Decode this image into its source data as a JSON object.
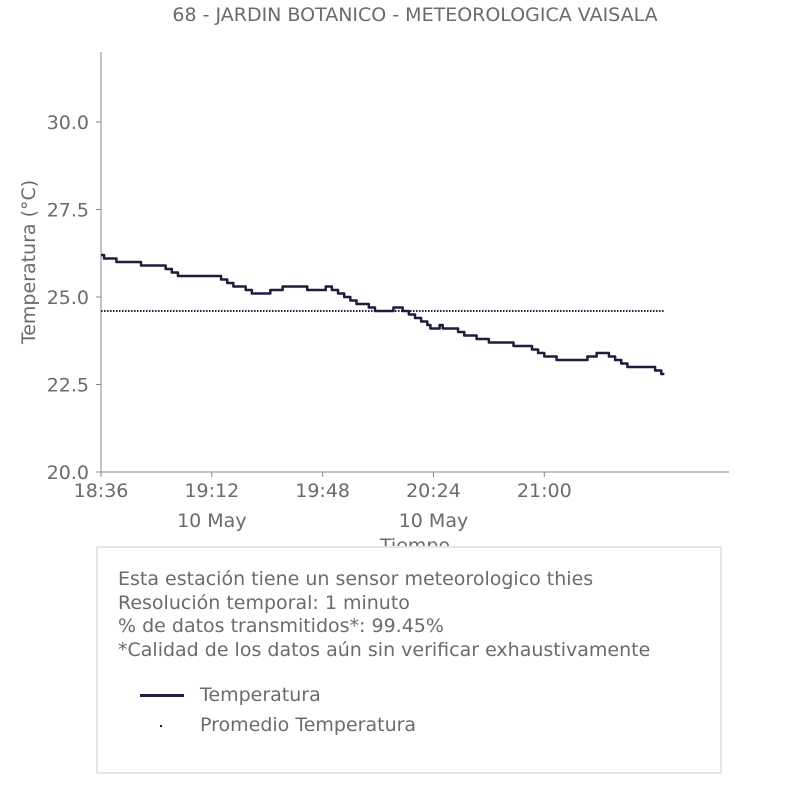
{
  "chart_data": {
    "type": "line",
    "title": "68 - JARDIN BOTANICO - METEOROLOGICA VAISALA",
    "xlabel": "Tiempo",
    "ylabel": "Temperatura (°C)",
    "ylim": [
      20.0,
      32.0
    ],
    "xlim": [
      "18:36",
      "22:00"
    ],
    "x_ticks": [
      "18:36",
      "19:12",
      "19:48",
      "20:24",
      "21:00"
    ],
    "x_date_labels": [
      {
        "at": "19:12",
        "label": "10 May"
      },
      {
        "at": "20:24",
        "label": "10 May"
      }
    ],
    "y_ticks": [
      "20.0",
      "22.5",
      "25.0",
      "27.5",
      "30.0"
    ],
    "grid": false,
    "series": [
      {
        "name": "Temperatura",
        "color": "#1c1e3e",
        "style": "solid",
        "points": [
          [
            "18:36",
            26.2
          ],
          [
            "18:37",
            26.1
          ],
          [
            "18:41",
            26.0
          ],
          [
            "18:49",
            25.9
          ],
          [
            "18:57",
            25.8
          ],
          [
            "18:59",
            25.7
          ],
          [
            "19:01",
            25.6
          ],
          [
            "19:15",
            25.5
          ],
          [
            "19:17",
            25.4
          ],
          [
            "19:19",
            25.3
          ],
          [
            "19:23",
            25.2
          ],
          [
            "19:25",
            25.1
          ],
          [
            "19:31",
            25.2
          ],
          [
            "19:35",
            25.3
          ],
          [
            "19:43",
            25.2
          ],
          [
            "19:49",
            25.3
          ],
          [
            "19:51",
            25.2
          ],
          [
            "19:53",
            25.1
          ],
          [
            "19:55",
            25.0
          ],
          [
            "19:57",
            24.9
          ],
          [
            "19:59",
            24.8
          ],
          [
            "20:03",
            24.7
          ],
          [
            "20:05",
            24.6
          ],
          [
            "20:11",
            24.7
          ],
          [
            "20:14",
            24.6
          ],
          [
            "20:16",
            24.5
          ],
          [
            "20:18",
            24.4
          ],
          [
            "20:20",
            24.3
          ],
          [
            "20:22",
            24.2
          ],
          [
            "20:23",
            24.1
          ],
          [
            "20:26",
            24.2
          ],
          [
            "20:27",
            24.1
          ],
          [
            "20:32",
            24.0
          ],
          [
            "20:34",
            23.9
          ],
          [
            "20:38",
            23.8
          ],
          [
            "20:42",
            23.7
          ],
          [
            "20:50",
            23.6
          ],
          [
            "20:56",
            23.5
          ],
          [
            "20:58",
            23.4
          ],
          [
            "21:00",
            23.3
          ],
          [
            "21:04",
            23.2
          ],
          [
            "21:14",
            23.3
          ],
          [
            "21:17",
            23.4
          ],
          [
            "21:21",
            23.3
          ],
          [
            "21:23",
            23.2
          ],
          [
            "21:25",
            23.1
          ],
          [
            "21:27",
            23.0
          ],
          [
            "21:36",
            22.9
          ],
          [
            "21:38",
            22.8
          ],
          [
            "21:39",
            22.8
          ]
        ]
      },
      {
        "name": "Promedio Temperatura",
        "color": "#1c1e3e",
        "style": "dotted",
        "points": [
          [
            "18:36",
            24.6
          ],
          [
            "21:39",
            24.6
          ]
        ]
      }
    ]
  },
  "info": {
    "lines": [
      "Esta estación tiene un sensor meteorologico thies",
      "Resolución temporal: 1 minuto",
      "% de datos transmitidos*: 99.45%",
      "*Calidad de los datos aún sin verificar exhaustivamente"
    ]
  },
  "legend": {
    "items": [
      "Temperatura",
      "Promedio Temperatura"
    ]
  },
  "colors": {
    "text": "#6b6b6b",
    "series": "#1c1e3e",
    "box_border": "#e6e6e6"
  }
}
